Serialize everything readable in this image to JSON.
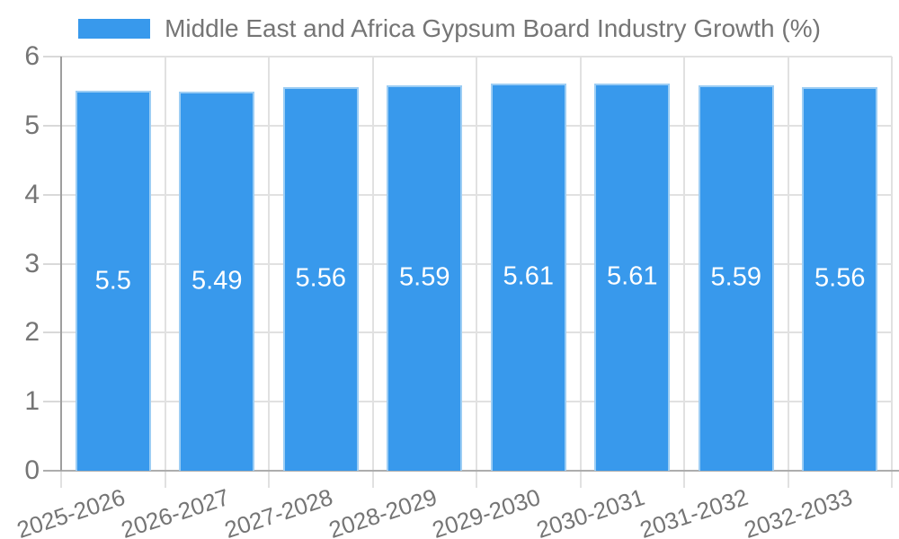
{
  "chart_data": {
    "type": "bar",
    "title": "Middle East and Africa Gypsum Board Industry Growth (%)",
    "categories": [
      "2025-2026",
      "2026-2027",
      "2027-2028",
      "2028-2029",
      "2029-2030",
      "2030-2031",
      "2031-2032",
      "2032-2033"
    ],
    "values": [
      5.5,
      5.49,
      5.56,
      5.59,
      5.61,
      5.61,
      5.59,
      5.56
    ],
    "value_labels": [
      "5.5",
      "5.49",
      "5.56",
      "5.59",
      "5.61",
      "5.61",
      "5.59",
      "5.56"
    ],
    "xlabel": "",
    "ylabel": "",
    "ylim": [
      0,
      6
    ],
    "yticks": [
      0,
      1,
      2,
      3,
      4,
      5,
      6
    ],
    "grid": true,
    "legend_position": "top",
    "colors": {
      "bar": "#3899EC",
      "bar_border": "#9CCDF4",
      "value_label": "#FFFFFF",
      "grid_line": "#E1E1E1",
      "axis_line": "#9E9E9E",
      "tick_label": "#757575",
      "title_text": "#757575",
      "background": "#FFFFFF"
    }
  }
}
